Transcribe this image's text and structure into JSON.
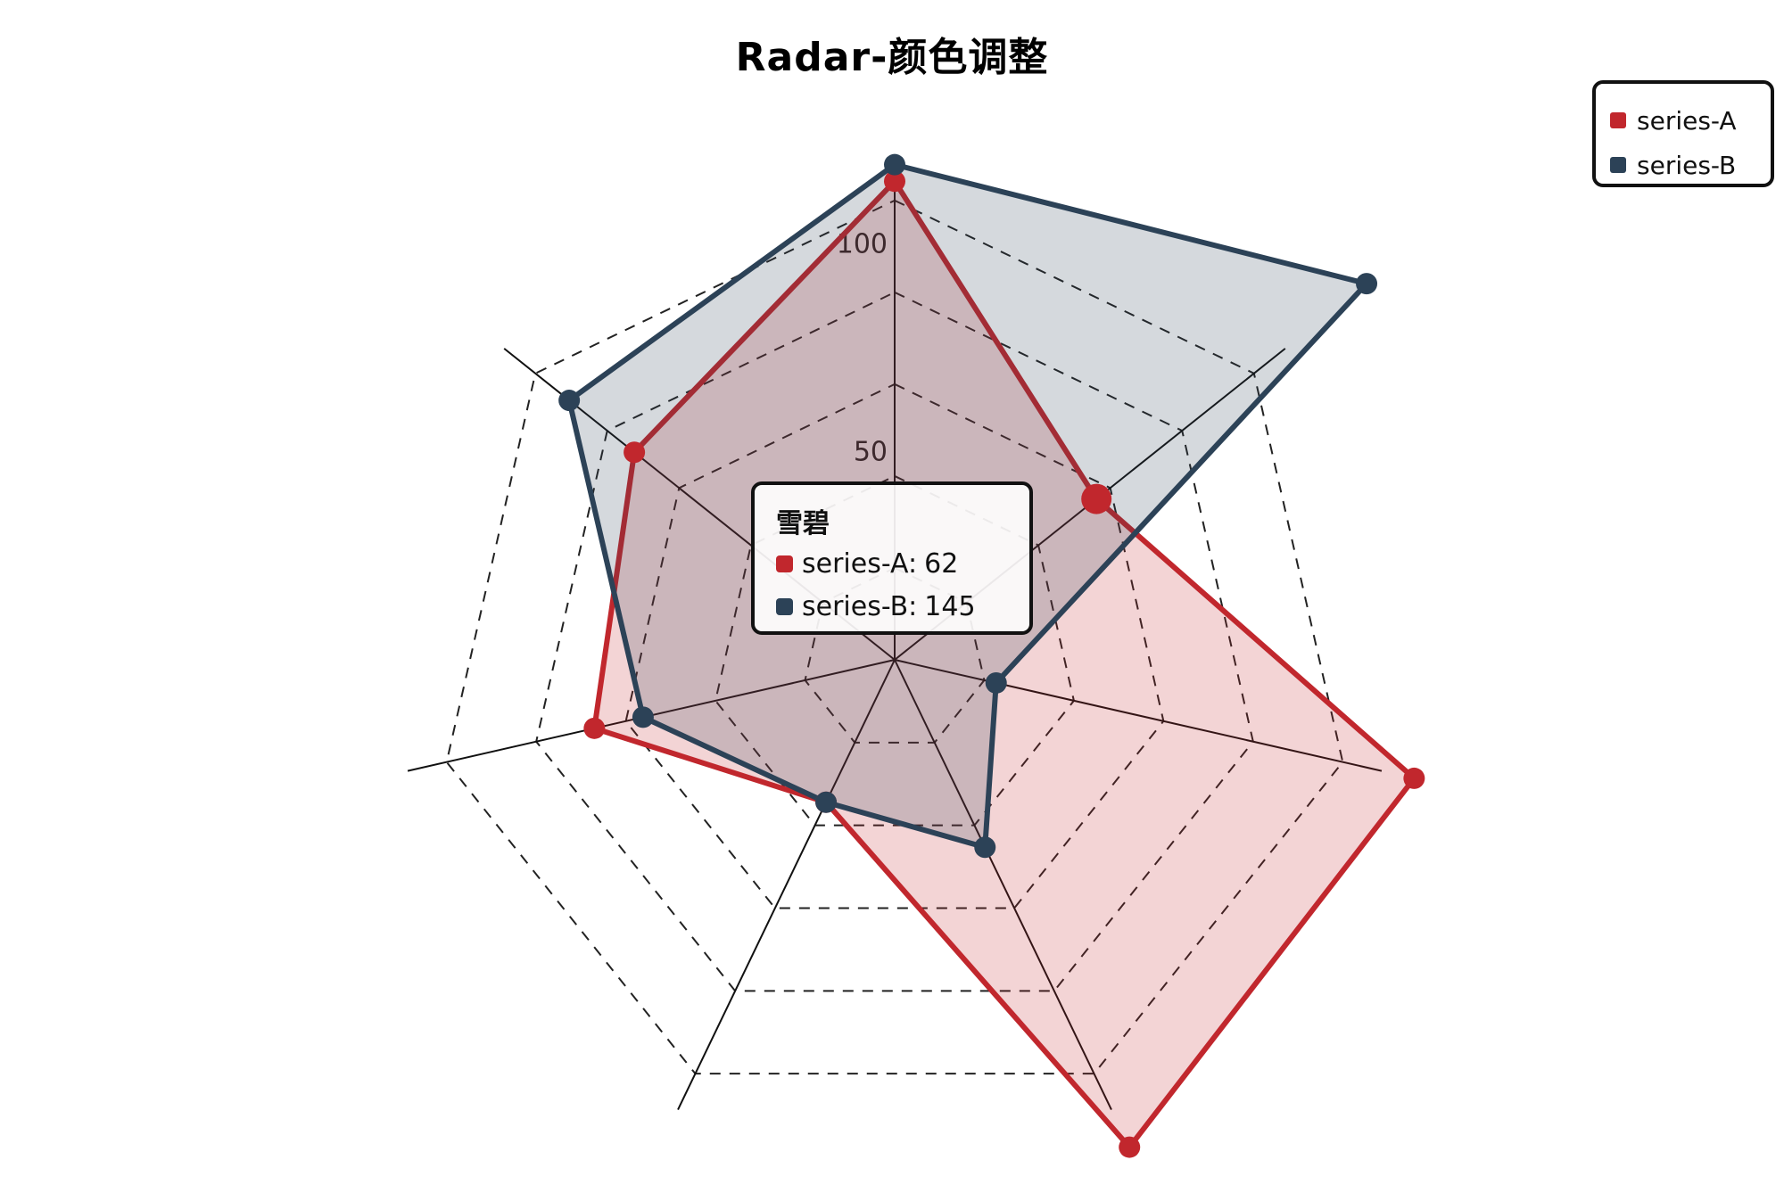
{
  "chart_data": {
    "type": "radar",
    "title": "Radar-颜色调整",
    "indicators": [
      "",
      "",
      "",
      "",
      "",
      "",
      ""
    ],
    "radius_ticks": [
      {
        "value": 50,
        "label": "50"
      },
      {
        "value": 100,
        "label": "100"
      }
    ],
    "max": 120,
    "series": [
      {
        "name": "series-A",
        "color": "#c1272d",
        "fill": "rgba(193,39,45,0.20)",
        "values": [
          115,
          62,
          128,
          130,
          38,
          74,
          80
        ]
      },
      {
        "name": "series-B",
        "color": "#2c4257",
        "fill": "rgba(44,66,87,0.20)",
        "values": [
          119,
          145,
          25,
          50,
          38,
          62,
          100
        ]
      }
    ],
    "legend_position": "top-right",
    "grid": "dashed-rings"
  },
  "legend": {
    "items": [
      {
        "label": "series-A",
        "color": "#c1272d"
      },
      {
        "label": "series-B",
        "color": "#2c4257"
      }
    ]
  },
  "tooltip": {
    "title": "雪碧",
    "rows": [
      {
        "label": "series-A:",
        "value": "62",
        "color": "#c1272d"
      },
      {
        "label": "series-B:",
        "value": "145",
        "color": "#2c4257"
      }
    ]
  }
}
